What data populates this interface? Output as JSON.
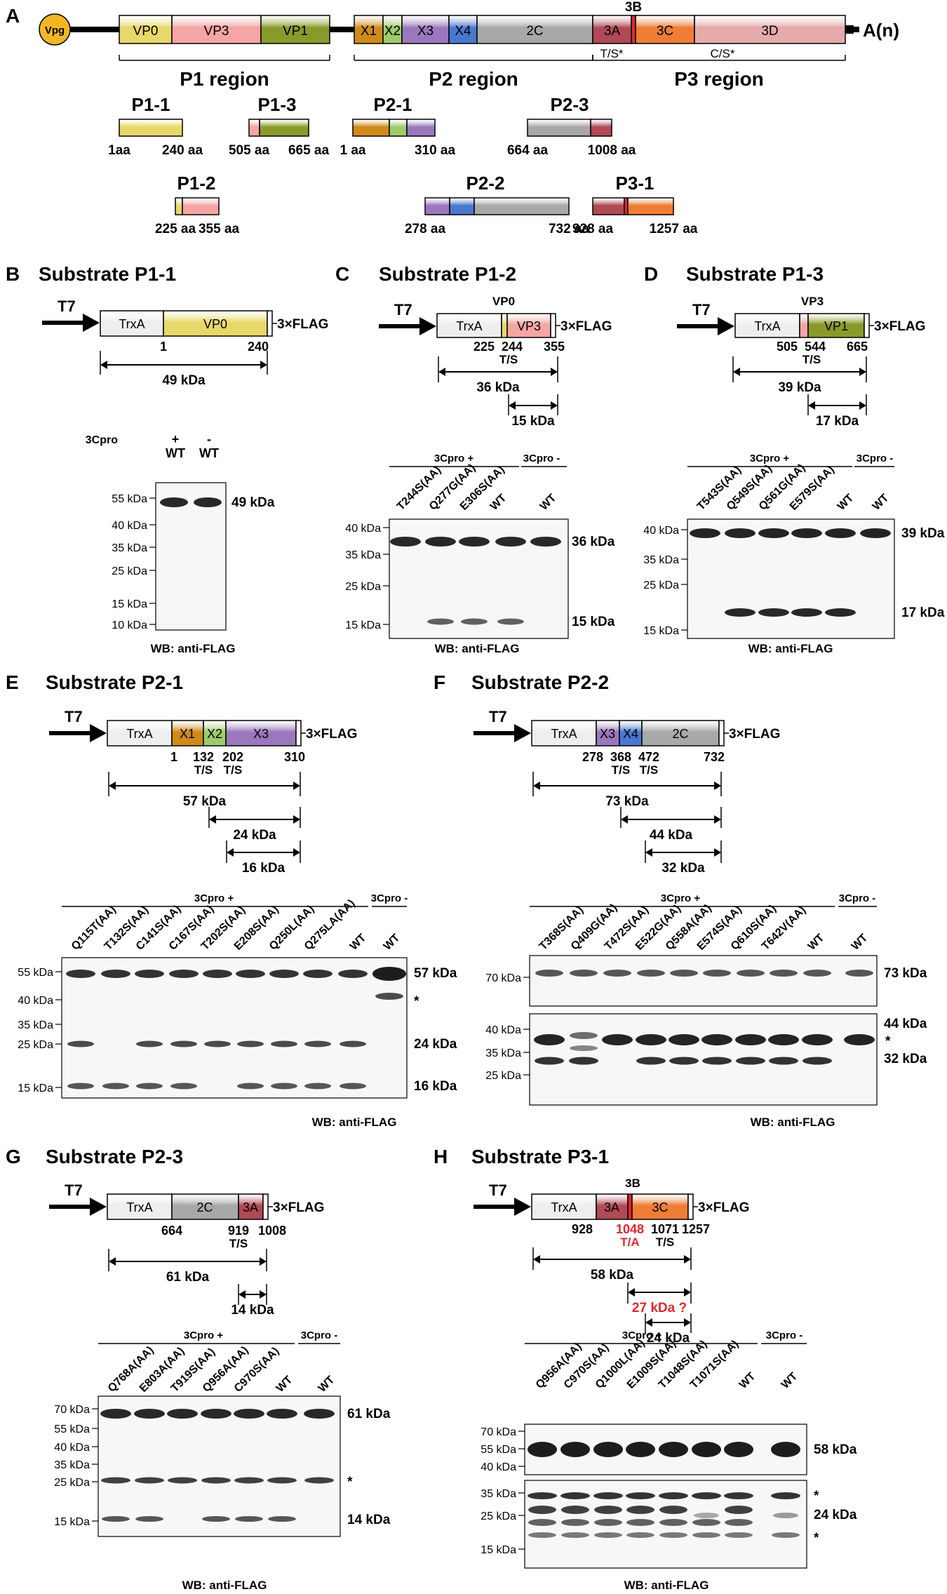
{
  "colors": {
    "vpg": "#f2b625",
    "vp0": "#e8d86a",
    "vp3": "#f6a5a5",
    "vp1": "#8a9a2a",
    "x1": "#d08a1a",
    "x2": "#9ccc6a",
    "x3": "#9b78bd",
    "x4": "#4a78d0",
    "c2": "#a8a8a8",
    "a3": "#b04a55",
    "c3": "#ef7d35",
    "d3": "#e5aaaa",
    "trxa": "#eeeeee",
    "red_text": "#e4262c"
  },
  "genome": {
    "vpg": "Vpg",
    "segments": [
      "VP0",
      "VP3",
      "VP1",
      "X1",
      "X2",
      "X3",
      "X4",
      "2C",
      "3A",
      "3C",
      "3D"
    ],
    "label_3b": "3B",
    "polyA": "A(n)",
    "ts_star": "T/S*",
    "cs_star": "C/S*",
    "regions": [
      "P1 region",
      "P2 region",
      "P3 region"
    ]
  },
  "fragments": [
    {
      "name": "P1-1",
      "start": "1aa",
      "end": "240 aa"
    },
    {
      "name": "P1-3",
      "start": "505 aa",
      "end": "665 aa"
    },
    {
      "name": "P2-1",
      "start": "1 aa",
      "end": "310 aa"
    },
    {
      "name": "P2-3",
      "start": "664 aa",
      "end": "1008 aa"
    },
    {
      "name": "P1-2",
      "start": "225 aa",
      "end": "355 aa"
    },
    {
      "name": "P2-2",
      "start": "278 aa",
      "end": "732 aa"
    },
    {
      "name": "P3-1",
      "start": "928 aa",
      "end": "1257 aa"
    }
  ],
  "common": {
    "t7": "T7",
    "trxa": "TrxA",
    "flag": "3×FLAG",
    "ts": "T/S",
    "ta": "T/A",
    "wb": "WB: anti-FLAG",
    "cpro_plus": "3Cpro +",
    "cpro_minus": "3Cpro -",
    "cpro": "3Cpro",
    "plus": "+",
    "minus": "-",
    "wt": "WT",
    "star": "*",
    "vp0": "VP0",
    "vp3": "VP3",
    "vp1": "VP1",
    "b3": "3B"
  },
  "panels": {
    "A": {
      "letter": "A"
    },
    "B": {
      "letter": "B",
      "title": "Substrate P1-1",
      "num1": "1",
      "num2": "240",
      "size1": "49 kDa",
      "ladder": [
        "55 kDa",
        "40 kDa",
        "35 kDa",
        "25 kDa",
        "15 kDa",
        "10 kDa"
      ],
      "band1": "49 kDa"
    },
    "C": {
      "letter": "C",
      "title": "Substrate P1-2",
      "nums": [
        "225",
        "244",
        "355"
      ],
      "size1": "36 kDa",
      "size2": "15 kDa",
      "lanes": [
        "T244S(AA)",
        "Q277G(AA)",
        "E306S(AA)",
        "WT",
        "WT"
      ],
      "ladder": [
        "40 kDa",
        "35 kDa",
        "25 kDa",
        "15 kDa"
      ],
      "band1": "36 kDa",
      "band2": "15 kDa"
    },
    "D": {
      "letter": "D",
      "title": "Substrate P1-3",
      "nums": [
        "505",
        "544",
        "665"
      ],
      "size1": "39 kDa",
      "size2": "17 kDa",
      "lanes": [
        "T543S(AA)",
        "Q549S(AA)",
        "Q561G(AA)",
        "E579S(AA)",
        "WT",
        "WT"
      ],
      "ladder": [
        "40 kDa",
        "35 kDa",
        "25 kDa",
        "15 kDa"
      ],
      "band1": "39 kDa",
      "band2": "17 kDa"
    },
    "E": {
      "letter": "E",
      "title": "Substrate P2-1",
      "nums": [
        "1",
        "132",
        "202",
        "310"
      ],
      "size1": "57 kDa",
      "size2": "24 kDa",
      "size3": "16 kDa",
      "lanes": [
        "Q115T(AA)",
        "T132S(AA)",
        "C141S(AA)",
        "C167S(AA)",
        "T202S(AA)",
        "E208S(AA)",
        "Q250L(AA)",
        "Q275LA(AA)",
        "WT",
        "WT"
      ],
      "ladder": [
        "55 kDa",
        "40 kDa",
        "35 kDa",
        "25 kDa",
        "15 kDa"
      ],
      "band1": "57 kDa",
      "band2": "24 kDa",
      "band3": "16 kDa"
    },
    "F": {
      "letter": "F",
      "title": "Substrate P2-2",
      "nums": [
        "278",
        "368",
        "472",
        "732"
      ],
      "size1": "73 kDa",
      "size2": "44 kDa",
      "size3": "32 kDa",
      "lanes": [
        "T368S(AA)",
        "Q409G(AA)",
        "T472S(AA)",
        "E522G(AA)",
        "Q558A(AA)",
        "E574S(AA)",
        "Q610S(AA)",
        "T642V(AA)",
        "WT",
        "WT"
      ],
      "ladder_top": [
        "70 kDa"
      ],
      "ladder_bot": [
        "40 kDa",
        "35 kDa",
        "25 kDa"
      ],
      "band1": "73 kDa",
      "band2": "44 kDa",
      "band3": "32 kDa"
    },
    "G": {
      "letter": "G",
      "title": "Substrate P2-3",
      "nums": [
        "664",
        "919",
        "1008"
      ],
      "size1": "61 kDa",
      "size2": "14 kDa",
      "lanes": [
        "Q768A(AA)",
        "E803A(AA)",
        "T919S(AA)",
        "Q956A(AA)",
        "C970S(AA)",
        "WT",
        "WT"
      ],
      "ladder": [
        "70 kDa",
        "55 kDa",
        "40 kDa",
        "35 kDa",
        "25 kDa",
        "15 kDa"
      ],
      "band1": "61 kDa",
      "band2": "14 kDa"
    },
    "H": {
      "letter": "H",
      "title": "Substrate P3-1",
      "nums": [
        "928",
        "1048",
        "1071",
        "1257"
      ],
      "size1": "58 kDa",
      "size2": "27 kDa ?",
      "size3": "24 kDa",
      "lanes": [
        "Q956A(AA)",
        "C970S(AA)",
        "Q1000L(AA)",
        "E1009S(AA)",
        "T1048S(AA)",
        "T1071S(AA)",
        "WT",
        "WT"
      ],
      "ladder_top": [
        "70 kDa",
        "55 kDa",
        "40 kDa"
      ],
      "ladder_bot": [
        "35 kDa",
        "25 kDa",
        "15 kDa"
      ],
      "band1": "58 kDa",
      "band2": "24 kDa"
    }
  }
}
